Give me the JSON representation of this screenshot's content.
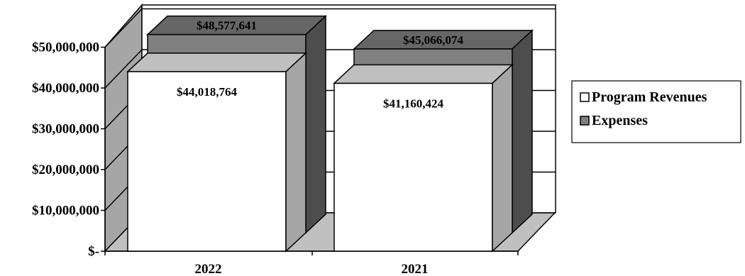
{
  "chart_data": {
    "type": "bar",
    "categories": [
      "2022",
      "2021"
    ],
    "series": [
      {
        "name": "Program Revenues",
        "values": [
          44018764,
          41160424
        ],
        "color": "#ffffff"
      },
      {
        "name": "Expenses",
        "values": [
          48577641,
          45066074
        ],
        "color": "#808080"
      }
    ],
    "data_labels": [
      [
        "$44,018,764",
        "$41,160,424"
      ],
      [
        "$48,577,641",
        "$45,066,074"
      ]
    ],
    "y_ticks": [
      {
        "value": 0,
        "label": "$-"
      },
      {
        "value": 10000000,
        "label": "$10,000,000"
      },
      {
        "value": 20000000,
        "label": "$20,000,000"
      },
      {
        "value": 30000000,
        "label": "$30,000,000"
      },
      {
        "value": 40000000,
        "label": "$40,000,000"
      },
      {
        "value": 50000000,
        "label": "$50,000,000"
      }
    ],
    "ylim": [
      0,
      50000000
    ],
    "grid": true,
    "style": "3d-stacked-depth",
    "legend_position": "right"
  }
}
